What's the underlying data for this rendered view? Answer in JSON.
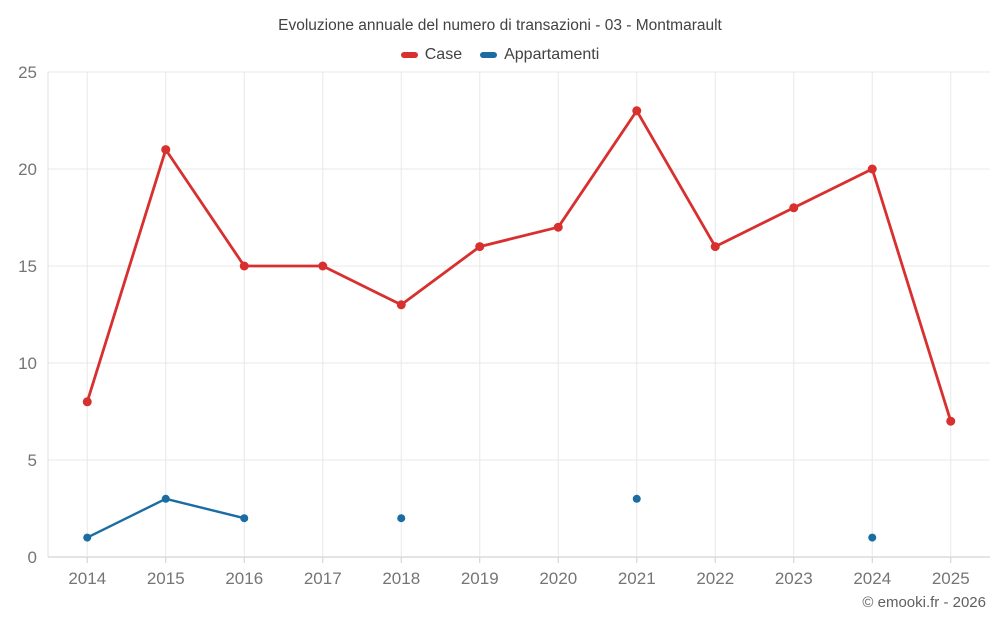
{
  "title": "Evoluzione annuale del numero di transazioni - 03 - Montmarault",
  "legend": [
    {
      "label": "Case",
      "color": "#d7302f"
    },
    {
      "label": "Appartamenti",
      "color": "#1b6ca3"
    }
  ],
  "footer": {
    "copyright": "© emooki.fr - 2026"
  },
  "chart_data": {
    "type": "line",
    "title": "Evoluzione annuale del numero di transazioni - 03 - Montmarault",
    "categories": [
      2014,
      2015,
      2016,
      2017,
      2018,
      2019,
      2020,
      2021,
      2022,
      2023,
      2024,
      2025
    ],
    "series": [
      {
        "name": "Case",
        "color": "#d7302f",
        "values": [
          8,
          21,
          15,
          15,
          13,
          16,
          17,
          23,
          16,
          18,
          20,
          7
        ]
      },
      {
        "name": "Appartamenti",
        "color": "#1b6ca3",
        "values": [
          1,
          3,
          2,
          null,
          2,
          null,
          null,
          3,
          null,
          null,
          1,
          null
        ]
      }
    ],
    "xlabel": "",
    "ylabel": "",
    "ylim": [
      0,
      25
    ],
    "yticks": [
      0,
      5,
      10,
      15,
      20,
      25
    ],
    "grid": true,
    "legend_position": "top"
  }
}
